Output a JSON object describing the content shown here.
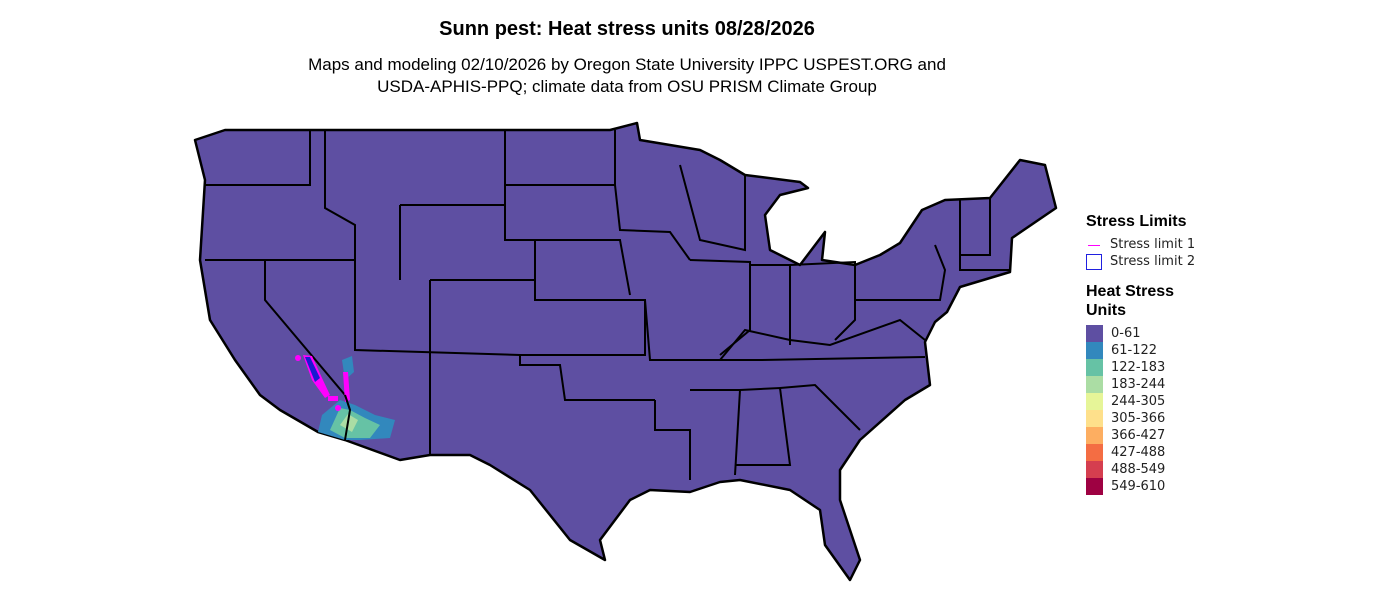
{
  "title": "Sunn pest: Heat stress units 08/28/2026",
  "subtitle_line1": "Maps and modeling 02/10/2026 by Oregon State University IPPC USPEST.ORG and",
  "subtitle_line2": "USDA-APHIS-PPQ; climate data from OSU PRISM Climate Group",
  "map": {
    "region": "Contiguous United States",
    "base_color": "#5e4fa2",
    "border_color": "#000000"
  },
  "legend": {
    "limits_title": "Stress Limits",
    "limits": [
      {
        "label": "Stress limit 1",
        "symbol": "line",
        "color": "#ff00ff"
      },
      {
        "label": "Stress limit 2",
        "symbol": "box",
        "color": "#2020e0"
      }
    ],
    "units_title_line1": "Heat Stress",
    "units_title_line2": "Units",
    "bins": [
      {
        "label": "0-61",
        "color": "#5e4fa2"
      },
      {
        "label": "61-122",
        "color": "#3288bd"
      },
      {
        "label": "122-183",
        "color": "#66c2a5"
      },
      {
        "label": "183-244",
        "color": "#abdda4"
      },
      {
        "label": "244-305",
        "color": "#e6f598"
      },
      {
        "label": "305-366",
        "color": "#fee08b"
      },
      {
        "label": "366-427",
        "color": "#fdae61"
      },
      {
        "label": "427-488",
        "color": "#f46d43"
      },
      {
        "label": "488-549",
        "color": "#d53e4f"
      },
      {
        "label": "549-610",
        "color": "#9e0142"
      }
    ]
  }
}
